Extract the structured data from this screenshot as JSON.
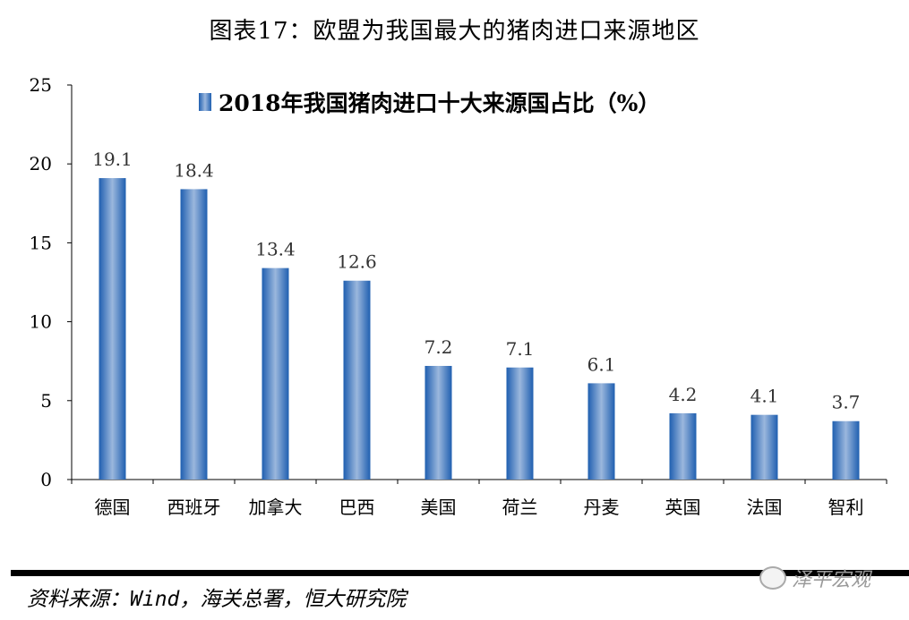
{
  "figure_title": "图表17：欧盟为我国最大的猪肉进口来源地区",
  "source": "资料来源：Wind，海关总署，恒大研究院",
  "watermark": "泽平宏观",
  "colors": {
    "bar_edge": "#1f5fb0",
    "bar_center": "#9bb7dd"
  },
  "chart_data": {
    "type": "bar",
    "title": "2018年我国猪肉进口十大来源国占比（%）",
    "legend_position": "top",
    "categories": [
      "德国",
      "西班牙",
      "加拿大",
      "巴西",
      "美国",
      "荷兰",
      "丹麦",
      "英国",
      "法国",
      "智利"
    ],
    "values": [
      19.1,
      18.4,
      13.4,
      12.6,
      7.2,
      7.1,
      6.1,
      4.2,
      4.1,
      3.7
    ],
    "value_labels": [
      "19.1",
      "18.4",
      "13.4",
      "12.6",
      "7.2",
      "7.1",
      "6.1",
      "4.2",
      "4.1",
      "3.7"
    ],
    "ylim": [
      0,
      25
    ],
    "yticks": [
      "0",
      "5",
      "10",
      "15",
      "20",
      "25"
    ],
    "grid": false,
    "xlabel": "",
    "ylabel": ""
  }
}
